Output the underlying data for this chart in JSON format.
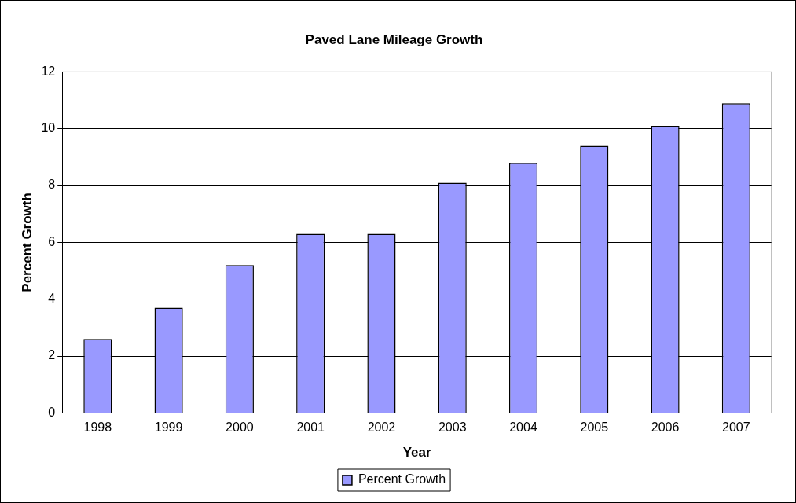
{
  "chart_data": {
    "type": "bar",
    "title": "Paved Lane Mileage Growth",
    "xlabel": "Year",
    "ylabel": "Percent Growth",
    "categories": [
      "1998",
      "1999",
      "2000",
      "2001",
      "2002",
      "2003",
      "2004",
      "2005",
      "2006",
      "2007"
    ],
    "series": [
      {
        "name": "Percent Growth",
        "color": "#9999ff",
        "values": [
          2.6,
          3.7,
          5.2,
          6.3,
          6.3,
          8.1,
          8.8,
          9.4,
          10.1,
          10.9
        ]
      }
    ],
    "ylim": [
      0,
      12
    ],
    "yticks": [
      0,
      2,
      4,
      6,
      8,
      10,
      12
    ],
    "grid": "y",
    "legend": "bottom"
  }
}
